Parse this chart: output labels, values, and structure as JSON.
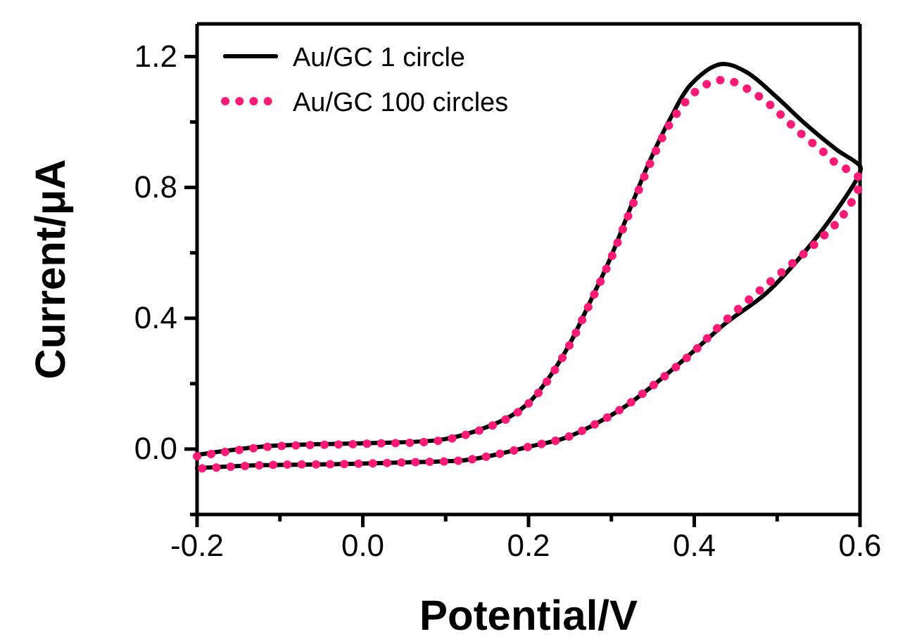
{
  "chart_data": {
    "type": "line",
    "xlabel": "Potential/V",
    "ylabel": "Current/μA",
    "xlim": [
      -0.2,
      0.6
    ],
    "ylim": [
      -0.2,
      1.3
    ],
    "xticks": [
      -0.2,
      {
        "value": -0.1,
        "label": null
      },
      {
        "value": 0,
        "label": "0.0"
      },
      {
        "value": 0.1,
        "label": null
      },
      0.2,
      {
        "value": 0.3,
        "label": null
      },
      0.4,
      {
        "value": 0.5,
        "label": null
      },
      0.6
    ],
    "yticks": [
      {
        "value": -0.2,
        "label": null
      },
      {
        "value": 0,
        "label": "0.0"
      },
      {
        "value": 0.2,
        "label": null
      },
      0.4,
      {
        "value": 0.6,
        "label": null
      },
      0.8,
      {
        "value": 1.0,
        "label": null
      },
      1.2
    ],
    "legend": "top left",
    "grid": false,
    "series": [
      {
        "name": "Au/GC 1 circle",
        "color": "#000000",
        "line_style": "solid",
        "x": [
          -0.2,
          -0.119,
          0.002,
          0.093,
          0.135,
          0.178,
          0.202,
          0.226,
          0.25,
          0.275,
          0.299,
          0.323,
          0.347,
          0.372,
          0.396,
          0.432,
          0.462,
          0.499,
          0.535,
          0.572,
          0.6,
          0.6,
          0.572,
          0.535,
          0.487,
          0.438,
          0.396,
          0.353,
          0.317,
          0.281,
          0.244,
          0.202,
          0.159,
          0.123,
          0.062,
          -0.028,
          -0.119,
          -0.2
        ],
        "values": [
          -0.018,
          0.008,
          0.018,
          0.028,
          0.054,
          0.1,
          0.146,
          0.223,
          0.323,
          0.454,
          0.585,
          0.738,
          0.885,
          1.015,
          1.115,
          1.177,
          1.154,
          1.077,
          0.992,
          0.915,
          0.865,
          0.846,
          0.731,
          0.608,
          0.477,
          0.385,
          0.292,
          0.2,
          0.131,
          0.077,
          0.034,
          0.008,
          -0.018,
          -0.034,
          -0.04,
          -0.046,
          -0.049,
          -0.058
        ]
      },
      {
        "name": "Au/GC 100 circles",
        "color": "#ff1a78",
        "line_style": "dotted",
        "x": [
          -0.2,
          -0.119,
          0.002,
          0.093,
          0.135,
          0.178,
          0.202,
          0.226,
          0.25,
          0.275,
          0.299,
          0.323,
          0.347,
          0.372,
          0.401,
          0.426,
          0.447,
          0.468,
          0.487,
          0.502,
          0.517,
          0.535,
          0.553,
          0.568,
          0.59,
          0.6,
          0.581,
          0.546,
          0.508,
          0.472,
          0.432,
          0.396,
          0.353,
          0.317,
          0.281,
          0.244,
          0.202,
          0.159,
          0.123,
          0.062,
          -0.028,
          -0.119,
          -0.2
        ],
        "values": [
          -0.022,
          0.006,
          0.016,
          0.026,
          0.052,
          0.098,
          0.144,
          0.22,
          0.32,
          0.45,
          0.58,
          0.73,
          0.875,
          1.0,
          1.092,
          1.126,
          1.123,
          1.095,
          1.062,
          1.028,
          0.992,
          0.951,
          0.915,
          0.88,
          0.846,
          0.823,
          0.72,
          0.628,
          0.546,
          0.47,
          0.38,
          0.29,
          0.2,
          0.131,
          0.077,
          0.034,
          0.008,
          -0.018,
          -0.034,
          -0.04,
          -0.046,
          -0.049,
          -0.06
        ]
      }
    ]
  }
}
